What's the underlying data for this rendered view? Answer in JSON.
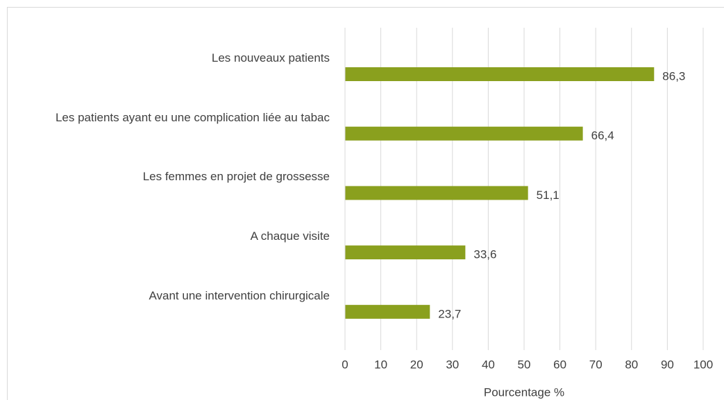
{
  "chart_data": {
    "type": "barh",
    "categories": [
      "Les nouveaux patients",
      "Les patients ayant eu une complication liée au tabac",
      "Les femmes en projet de grossesse",
      "A chaque visite",
      "Avant une intervention chirurgicale"
    ],
    "values": [
      86.3,
      66.4,
      51.1,
      33.6,
      23.7
    ],
    "value_labels": [
      "86,3",
      "66,4",
      "51,1",
      "33,6",
      "23,7"
    ],
    "color": "#8aa01e",
    "xlabel": "Pourcentage %",
    "xlim": [
      0,
      100
    ],
    "xticks": [
      0,
      10,
      20,
      30,
      40,
      50,
      60,
      70,
      80,
      90,
      100
    ],
    "grid": true
  }
}
